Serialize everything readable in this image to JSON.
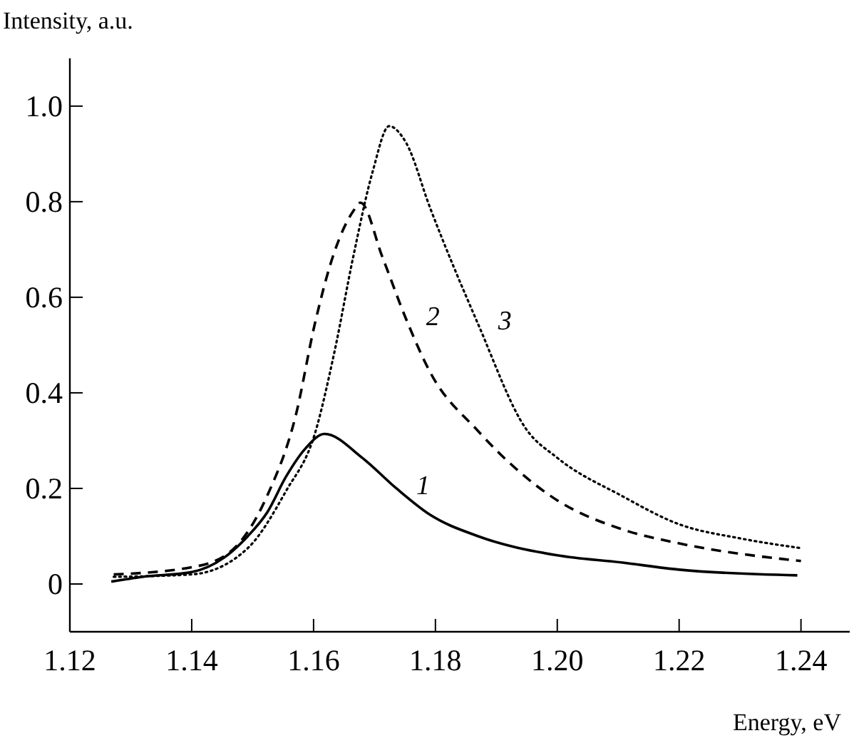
{
  "chart_data": {
    "type": "line",
    "xlabel": "Energy, eV",
    "ylabel": "Intensity, a.u.",
    "xlim": [
      1.12,
      1.248
    ],
    "ylim": [
      -0.1,
      1.1
    ],
    "xticks": [
      {
        "value": 1.12,
        "label": "1.12"
      },
      1.14,
      1.16,
      1.18,
      {
        "value": 1.2,
        "label": "1.20"
      },
      1.22,
      1.24
    ],
    "yticks": [
      0,
      0.2,
      0.4,
      0.6,
      0.8,
      {
        "value": 1,
        "label": "1.0"
      }
    ],
    "grid": false,
    "marker": "none",
    "series": [
      {
        "name": "1",
        "color": "#000000",
        "line_style": "solid",
        "x": [
          1.1268,
          1.1319,
          1.14,
          1.1453,
          1.1492,
          1.1524,
          1.1555,
          1.1587,
          1.1618,
          1.168,
          1.1736,
          1.1791,
          1.187,
          1.2,
          1.2105,
          1.22,
          1.2394
        ],
        "values": [
          0.005,
          0.015,
          0.025,
          0.055,
          0.1,
          0.15,
          0.225,
          0.284,
          0.314,
          0.264,
          0.2,
          0.145,
          0.1,
          0.06,
          0.045,
          0.03,
          0.018
        ]
      },
      {
        "name": "2",
        "color": "#000000",
        "line_style": "dashed",
        "x": [
          1.1272,
          1.14,
          1.1461,
          1.1524,
          1.1571,
          1.1602,
          1.1634,
          1.1665,
          1.1677,
          1.1713,
          1.1752,
          1.1791,
          1.187,
          1.2,
          1.2105,
          1.22,
          1.24
        ],
        "values": [
          0.02,
          0.035,
          0.065,
          0.185,
          0.354,
          0.544,
          0.694,
          0.78,
          0.798,
          0.684,
          0.554,
          0.444,
          0.32,
          0.175,
          0.115,
          0.085,
          0.048
        ]
      },
      {
        "name": "3",
        "color": "#000000",
        "line_style": "dotted",
        "x": [
          1.1272,
          1.14,
          1.1492,
          1.1555,
          1.1602,
          1.1634,
          1.1665,
          1.1697,
          1.1724,
          1.1752,
          1.1791,
          1.187,
          1.1949,
          1.2,
          1.2105,
          1.22,
          1.2302,
          1.24
        ],
        "values": [
          0.015,
          0.02,
          0.075,
          0.195,
          0.314,
          0.484,
          0.684,
          0.863,
          0.958,
          0.923,
          0.788,
          0.544,
          0.324,
          0.264,
          0.185,
          0.125,
          0.095,
          0.075
        ]
      }
    ]
  }
}
